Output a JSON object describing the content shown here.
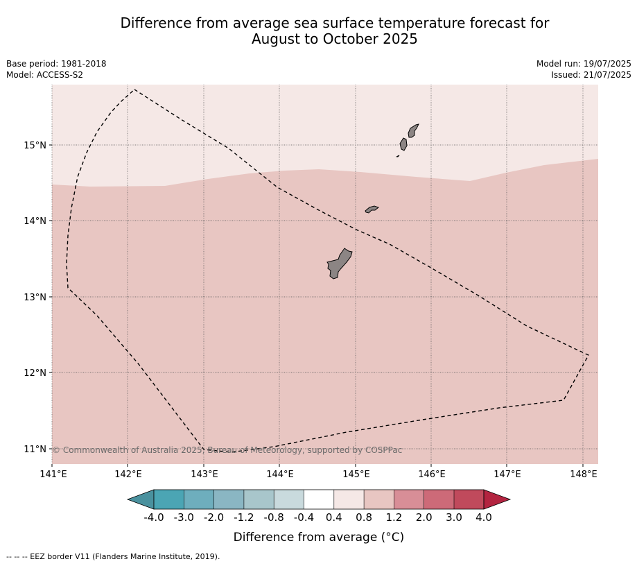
{
  "title": {
    "line1": "Difference from average sea surface temperature forecast for",
    "line2": "August to October 2025"
  },
  "meta": {
    "base_period": "Base period: 1981-2018",
    "model": "Model: ACCESS-S2",
    "model_run": "Model run: 19/07/2025",
    "issued": "Issued: 21/07/2025"
  },
  "map": {
    "lat_labels": [
      "15°N",
      "14°N",
      "13°N",
      "12°N",
      "11°N"
    ],
    "lon_labels": [
      "141°E",
      "142°E",
      "143°E",
      "144°E",
      "145°E",
      "146°E",
      "147°E",
      "148°E"
    ],
    "copyright": "© Commonwealth of Australia 2025, Bureau of Meteorology, supported by COSPPac",
    "colors": {
      "band_0_4_to_0_8": "#f5e8e6",
      "band_0_8_to_1_2": "#e8c6c2",
      "land": "#8c8584",
      "eez_border": "#000000"
    }
  },
  "colorbar": {
    "title": "Difference from average (°C)",
    "tick_labels": [
      "-4.0",
      "-3.0",
      "-2.0",
      "-1.2",
      "-0.8",
      "-0.4",
      "0.4",
      "0.8",
      "1.2",
      "2.0",
      "3.0",
      "4.0"
    ],
    "colors": [
      "#4a919e",
      "#4ba5b4",
      "#6eaebd",
      "#8ab6c3",
      "#a8c6cb",
      "#c9dadd",
      "#ffffff",
      "#f5e8e6",
      "#e8c6c2",
      "#d88e97",
      "#cd6a78",
      "#c04a5c",
      "#b32440"
    ]
  },
  "legend_note": "--  --  -- EEZ border V11 (Flanders Marine Institute, 2019)."
}
